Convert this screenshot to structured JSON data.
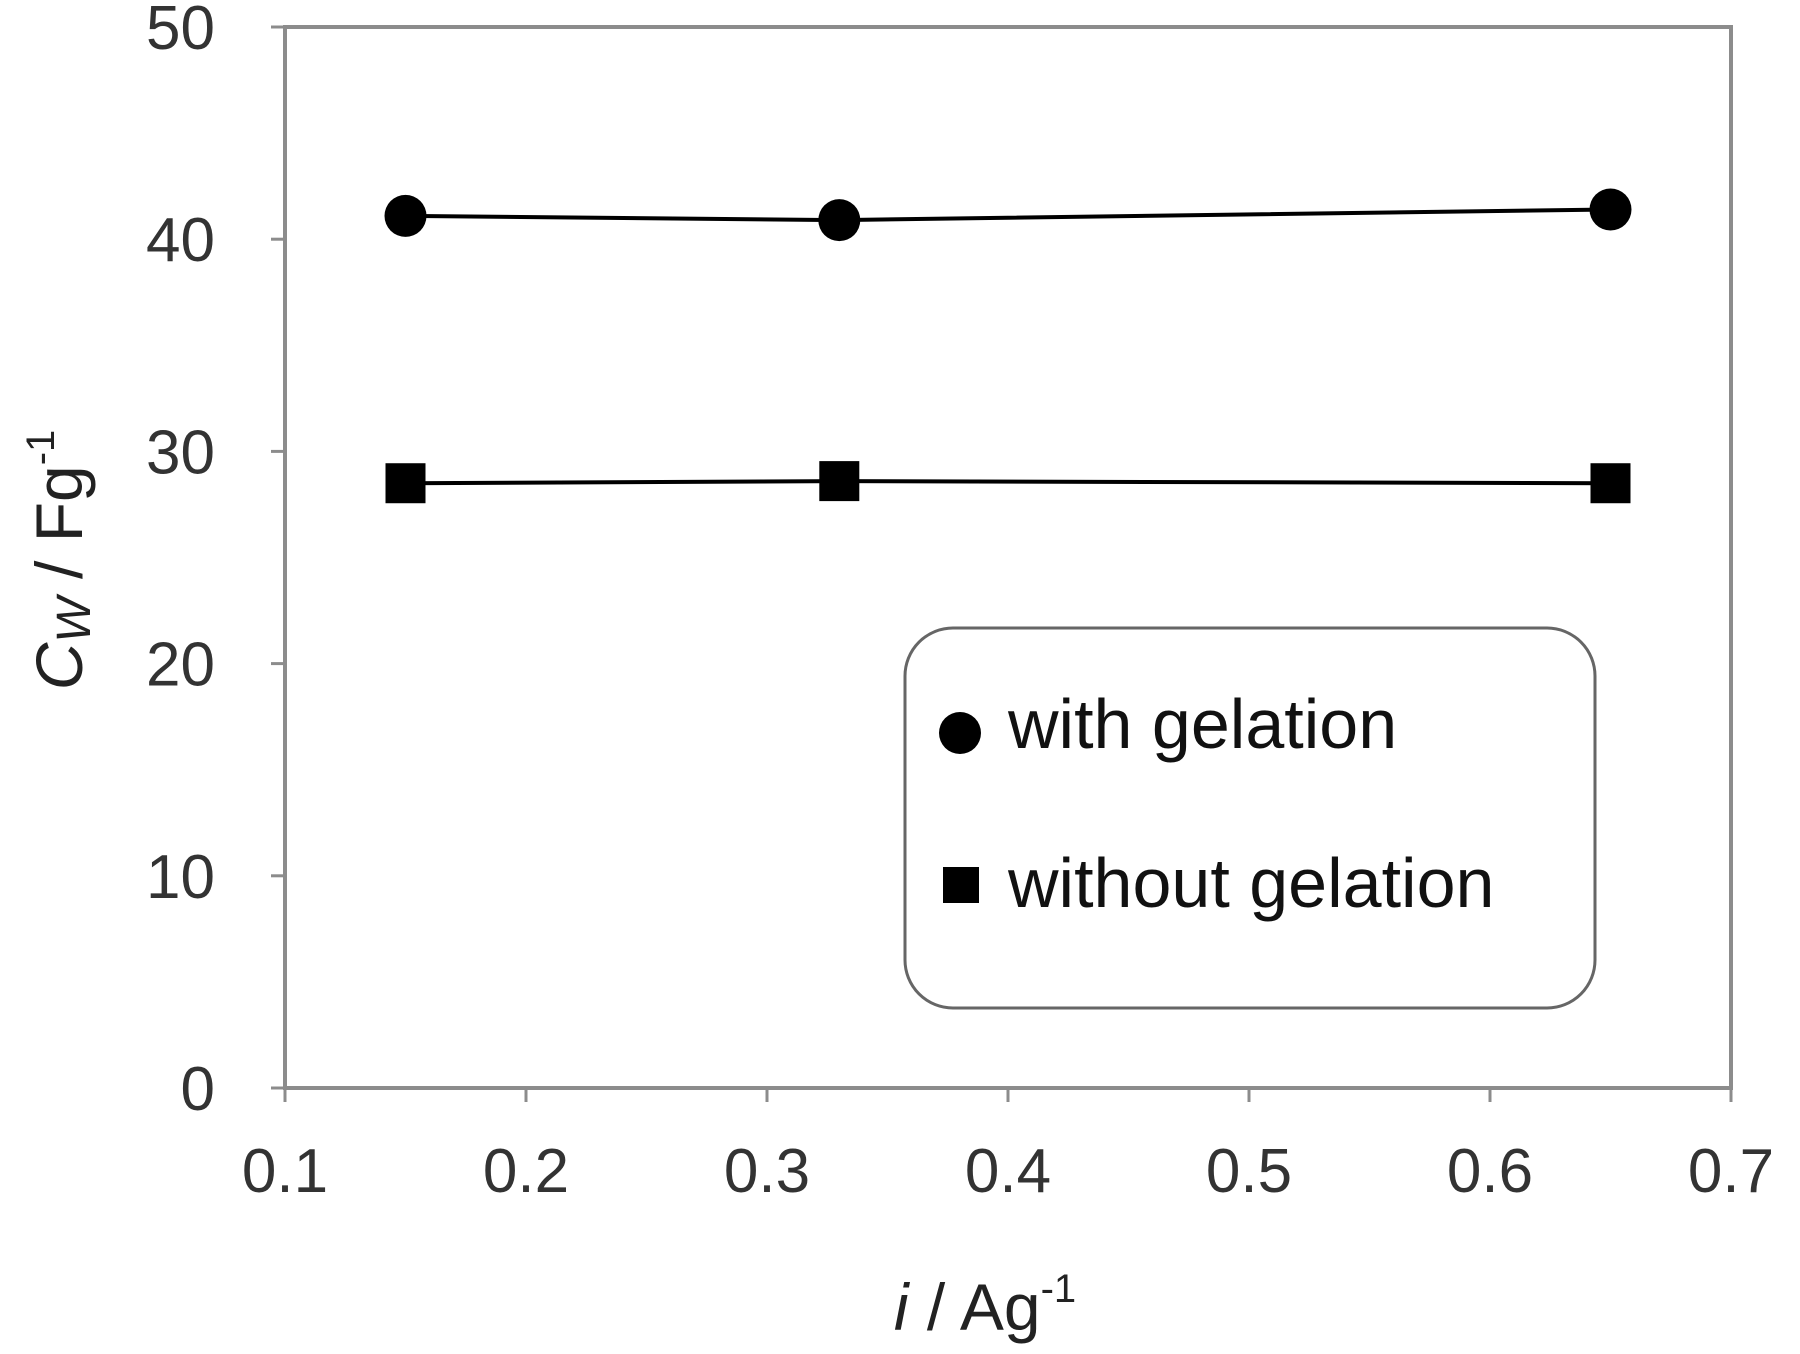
{
  "chart_data": {
    "type": "line",
    "title": "",
    "xlabel": {
      "symbol": "i",
      "unit": " / Ag",
      "exponent": "-1"
    },
    "ylabel": {
      "symbol": "C",
      "subscript": "W",
      "unit": " / Fg",
      "exponent": "-1"
    },
    "xlim": [
      0.1,
      0.7
    ],
    "ylim": [
      0,
      50
    ],
    "xticks": [
      "0.1",
      "0.2",
      "0.3",
      "0.4",
      "0.5",
      "0.6",
      "0.7"
    ],
    "yticks": [
      "0",
      "10",
      "20",
      "30",
      "40",
      "50"
    ],
    "grid": false,
    "legend_position": "lower-right",
    "series": [
      {
        "name": "with gelation",
        "marker": "circle",
        "color": "#000000",
        "x": [
          0.15,
          0.33,
          0.65
        ],
        "y": [
          41.1,
          40.9,
          41.4
        ]
      },
      {
        "name": "without gelation",
        "marker": "square",
        "color": "#000000",
        "x": [
          0.15,
          0.33,
          0.65
        ],
        "y": [
          28.5,
          28.6,
          28.5
        ]
      }
    ]
  }
}
